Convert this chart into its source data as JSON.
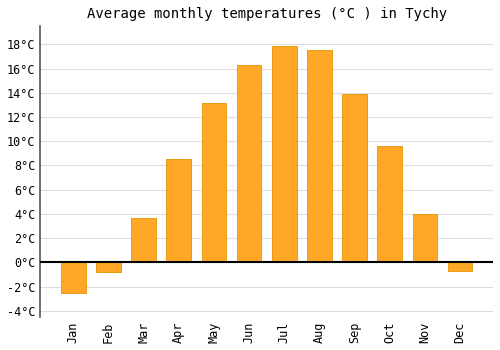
{
  "months": [
    "Jan",
    "Feb",
    "Mar",
    "Apr",
    "May",
    "Jun",
    "Jul",
    "Aug",
    "Sep",
    "Oct",
    "Nov",
    "Dec"
  ],
  "values": [
    -2.5,
    -0.8,
    3.7,
    8.5,
    13.2,
    16.3,
    17.9,
    17.5,
    13.9,
    9.6,
    4.0,
    -0.7
  ],
  "bar_color": "#FFA726",
  "bar_edge_color": "#E59400",
  "title": "Average monthly temperatures (°C ) in Tychy",
  "ylim": [
    -4.5,
    19.5
  ],
  "yticks": [
    -4,
    -2,
    0,
    2,
    4,
    6,
    8,
    10,
    12,
    14,
    16,
    18
  ],
  "ytick_labels": [
    "-4°C",
    "-2°C",
    "0°C",
    "2°C",
    "4°C",
    "6°C",
    "8°C",
    "10°C",
    "12°C",
    "14°C",
    "16°C",
    "18°C"
  ],
  "background_color": "#ffffff",
  "grid_color": "#dddddd",
  "title_fontsize": 10,
  "tick_fontsize": 8.5,
  "font_family": "monospace"
}
